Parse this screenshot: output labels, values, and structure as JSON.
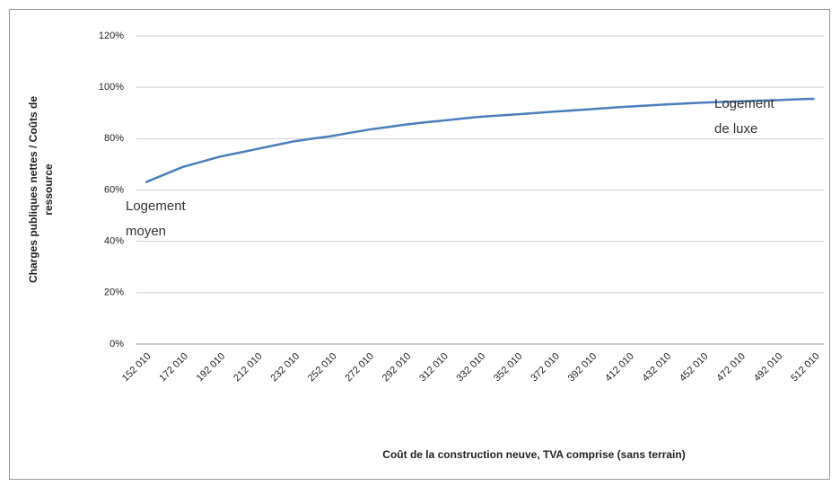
{
  "chart_data": {
    "type": "line",
    "y_label": [
      "Charges publiques nettes / Coûts de",
      "ressource"
    ],
    "x_label": "Coût de la construction neuve, TVA comprise (sans terrain)",
    "categories": [
      "152 010",
      null,
      "172 010",
      null,
      "192 010",
      null,
      "212 010",
      null,
      "232 010",
      null,
      "252 010",
      null,
      "272 010",
      null,
      "292 010",
      null,
      "312 010",
      null,
      "332 010",
      null,
      "352 010",
      null,
      "372 010",
      null,
      "392 010",
      null,
      "412 010",
      null,
      "432 010",
      null,
      "452 010",
      null,
      "472 010",
      null,
      "492 010",
      null,
      "512 010"
    ],
    "series": [
      {
        "name": "Charges publiques nettes / Coûts de ressource",
        "color": "#4a7ebb",
        "values": [
          63,
          66,
          69,
          71,
          73,
          74.5,
          76,
          77.5,
          79,
          80,
          81,
          82.3,
          83.5,
          84.5,
          85.5,
          86.3,
          87,
          87.8,
          88.5,
          89,
          89.5,
          90,
          90.5,
          91,
          91.5,
          92,
          92.5,
          92.9,
          93.3,
          93.7,
          94,
          94.3,
          94.5,
          94.8,
          95,
          95.3,
          95.5
        ]
      }
    ],
    "ylim": [
      0,
      120
    ],
    "yticks": [
      {
        "value": 0,
        "label": "0%"
      },
      {
        "value": 20,
        "label": "20%"
      },
      {
        "value": 40,
        "label": "40%"
      },
      {
        "value": 60,
        "label": "60%"
      },
      {
        "value": 80,
        "label": "80%"
      },
      {
        "value": 100,
        "label": "100%"
      },
      {
        "value": 120,
        "label": "120%"
      }
    ],
    "grid": true,
    "annotations": [
      {
        "lines": [
          "Logement",
          "moyen"
        ]
      },
      {
        "lines": [
          "Logement",
          "de luxe"
        ]
      }
    ]
  }
}
